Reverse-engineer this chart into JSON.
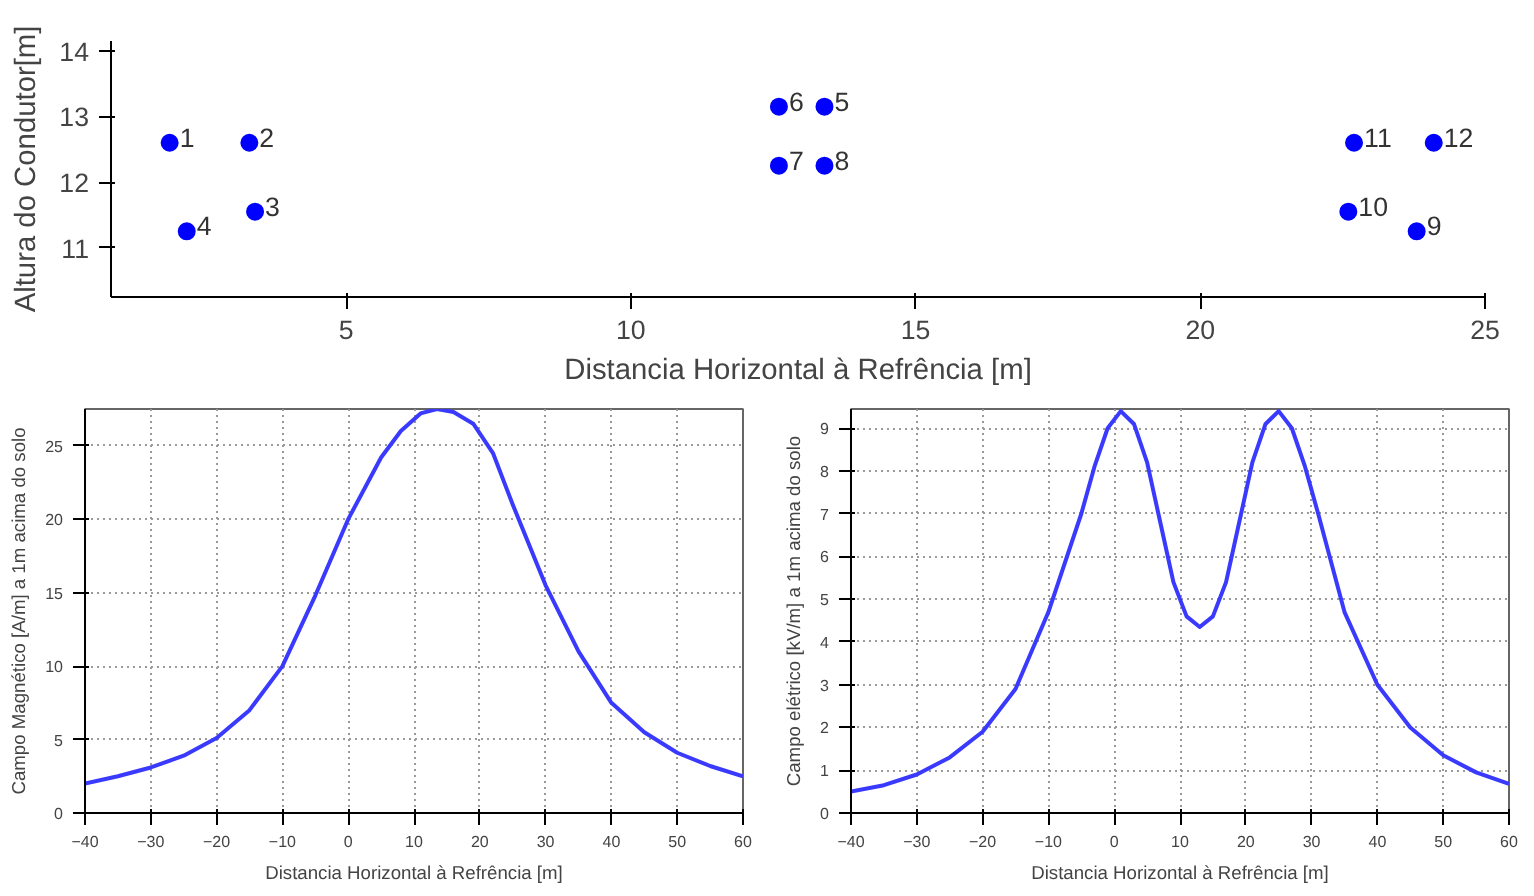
{
  "chart_data": [
    {
      "type": "scatter",
      "xlabel": "Distancia Horizontal à Refrência [m]",
      "ylabel": "Altura do Condutor[m]",
      "marker": "circle",
      "grid": false,
      "x": [
        1.9,
        3.3,
        3.4,
        2.2,
        13.4,
        12.6,
        12.6,
        13.4,
        23.8,
        22.6,
        22.7,
        24.1
      ],
      "series": [
        {
          "color": "#0000ff",
          "values": [
            12.6,
            12.6,
            11.55,
            11.25,
            13.15,
            13.15,
            12.25,
            12.25,
            11.25,
            11.55,
            12.6,
            12.6
          ]
        }
      ],
      "xlim": [
        0.87,
        25
      ],
      "ylim": [
        10.25,
        14.15
      ],
      "xticks": [
        5,
        10,
        15,
        20,
        25
      ],
      "yticks": [
        11,
        12,
        13,
        14
      ],
      "annotations": [
        {
          "text": "1",
          "x": 1.9,
          "y": 12.6
        },
        {
          "text": "2",
          "x": 3.3,
          "y": 12.6
        },
        {
          "text": "3",
          "x": 3.4,
          "y": 11.55
        },
        {
          "text": "4",
          "x": 2.2,
          "y": 11.25
        },
        {
          "text": "5",
          "x": 13.4,
          "y": 13.15
        },
        {
          "text": "6",
          "x": 12.6,
          "y": 13.15
        },
        {
          "text": "7",
          "x": 12.6,
          "y": 12.25
        },
        {
          "text": "8",
          "x": 13.4,
          "y": 12.25
        },
        {
          "text": "9",
          "x": 23.8,
          "y": 11.25
        },
        {
          "text": "10",
          "x": 22.6,
          "y": 11.55
        },
        {
          "text": "11",
          "x": 22.7,
          "y": 12.6
        },
        {
          "text": "12",
          "x": 24.1,
          "y": 12.6
        }
      ]
    },
    {
      "type": "line",
      "xlabel": "Distancia Horizontal à Refrência [m]",
      "ylabel": "Campo Magnético [A/m] a 1m acima do solo",
      "grid": true,
      "line_style": "solid",
      "x": [
        -40,
        -35,
        -30,
        -25,
        -20,
        -15,
        -10,
        -5,
        0,
        5,
        8,
        11,
        13.5,
        16,
        19,
        22,
        25,
        30,
        35,
        40,
        45,
        50,
        55,
        60
      ],
      "series": [
        {
          "color": "#3a3aff",
          "values": [
            2.0,
            2.5,
            3.1,
            3.9,
            5.1,
            7.0,
            10.0,
            14.8,
            20.0,
            24.2,
            26.0,
            27.2,
            27.5,
            27.3,
            26.5,
            24.5,
            21.0,
            15.5,
            11.0,
            7.5,
            5.5,
            4.1,
            3.2,
            2.5
          ]
        }
      ],
      "xlim": [
        -40,
        60
      ],
      "ylim": [
        0,
        27.5
      ],
      "xticks": [
        -40,
        -30,
        -20,
        -10,
        0,
        10,
        20,
        30,
        40,
        50,
        60
      ],
      "yticks": [
        0,
        5,
        10,
        15,
        20,
        25
      ]
    },
    {
      "type": "line",
      "xlabel": "Distancia Horizontal à Refrência [m]",
      "ylabel": "Campo elétrico [kV/m] a 1m acima do solo",
      "grid": true,
      "line_style": "solid",
      "x": [
        -40,
        -35,
        -30,
        -25,
        -20,
        -15,
        -10,
        -5,
        -3,
        -1,
        1,
        3,
        5,
        7,
        9,
        11,
        13,
        15,
        17,
        19,
        21,
        23,
        25,
        27,
        29,
        31,
        35,
        40,
        45,
        50,
        55,
        60
      ],
      "series": [
        {
          "color": "#3a3aff",
          "values": [
            0.5,
            0.65,
            0.9,
            1.3,
            1.9,
            2.9,
            4.7,
            7.0,
            8.1,
            9.0,
            9.4,
            9.1,
            8.2,
            6.8,
            5.4,
            4.6,
            4.35,
            4.6,
            5.4,
            6.8,
            8.2,
            9.1,
            9.4,
            9.0,
            8.1,
            7.0,
            4.7,
            3.0,
            2.0,
            1.35,
            0.95,
            0.68
          ]
        }
      ],
      "xlim": [
        -40,
        60
      ],
      "ylim": [
        0,
        9.45
      ],
      "xticks": [
        -40,
        -30,
        -20,
        -10,
        0,
        10,
        20,
        30,
        40,
        50,
        60
      ],
      "yticks": [
        0,
        1,
        2,
        3,
        4,
        5,
        6,
        7,
        8,
        9
      ]
    }
  ]
}
